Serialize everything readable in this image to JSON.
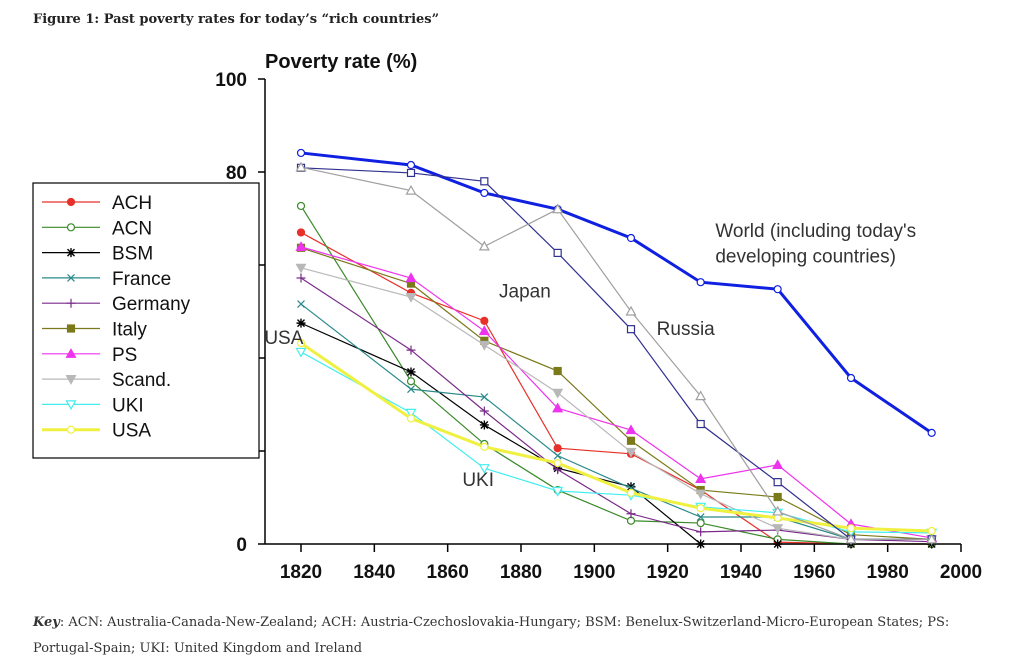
{
  "figure_title": "Figure 1: Past poverty rates for today’s “rich countries”",
  "key": {
    "label": "Key",
    "text": ": ACN: Australia-Canada-New-Zealand; ACH: Austria-Czechoslovakia-Hungary; BSM: Benelux-Switzerland-Micro-European States; PS: Portugal-Spain; UKI: United Kingdom and Ireland"
  },
  "chart_data": {
    "type": "line",
    "title": "",
    "ylabel": "Poverty rate (%)",
    "xlabel": "",
    "xlim": [
      1820,
      2000
    ],
    "ylim": [
      0,
      100
    ],
    "xticks": [
      1820,
      1840,
      1860,
      1880,
      1900,
      1920,
      1940,
      1960,
      1980,
      2000
    ],
    "yticks": [
      0,
      20,
      40,
      60,
      80,
      100
    ],
    "grid": false,
    "legend_placement": "left",
    "x": [
      1820,
      1850,
      1870,
      1890,
      1910,
      1929,
      1950,
      1970,
      1992
    ],
    "series": [
      {
        "name": "ACH",
        "color": "#e8302a",
        "marker": "circle-filled",
        "values": [
          67,
          54,
          48,
          20.6,
          19.4,
          11.6,
          0.4,
          0,
          0
        ],
        "legend": true
      },
      {
        "name": "ACN",
        "color": "#3a8a2a",
        "marker": "circle-open",
        "values": [
          72.7,
          35,
          21.5,
          11.6,
          5,
          4.5,
          1,
          0,
          0
        ],
        "legend": true
      },
      {
        "name": "BSM",
        "color": "#000000",
        "marker": "star",
        "values": [
          47.5,
          37,
          25.6,
          16.3,
          12.3,
          0,
          0,
          0,
          0
        ],
        "legend": true
      },
      {
        "name": "France",
        "color": "#2a8a8a",
        "marker": "x",
        "values": [
          51.6,
          33.3,
          31.6,
          19,
          12,
          5.8,
          5.8,
          1,
          1
        ],
        "legend": true
      },
      {
        "name": "Germany",
        "color": "#7a2a8a",
        "marker": "plus",
        "values": [
          57.2,
          41.7,
          28.6,
          16,
          6.5,
          2.6,
          3,
          1,
          0.5
        ],
        "legend": true
      },
      {
        "name": "Italy",
        "color": "#7a7a1a",
        "marker": "square-filled",
        "values": [
          63.7,
          56,
          43.7,
          37.2,
          22.2,
          11.6,
          10.1,
          2,
          1
        ],
        "legend": true
      },
      {
        "name": "PS",
        "color": "#ee33ee",
        "marker": "triangle-filled",
        "values": [
          63.9,
          57.2,
          45.8,
          29.2,
          24.5,
          14,
          17,
          4.3,
          1.3
        ],
        "legend": true
      },
      {
        "name": "Scand.",
        "color": "#b8b8b8",
        "marker": "triangle-down-filled",
        "values": [
          59.4,
          53.1,
          42.8,
          32.5,
          19.8,
          10.8,
          3.4,
          1,
          1
        ],
        "legend": true
      },
      {
        "name": "UKI",
        "color": "#44eeee",
        "marker": "triangle-down-open",
        "values": [
          41.3,
          28.2,
          16.3,
          11.4,
          10.5,
          8,
          6.7,
          2.6,
          2.4
        ],
        "legend": true
      },
      {
        "name": "USA",
        "color": "#f0f040",
        "marker": "circle-open",
        "values": [
          43.2,
          27,
          20.9,
          17.4,
          11,
          7.7,
          5.6,
          3.4,
          2.8
        ],
        "legend": true,
        "thick": true
      },
      {
        "name": "World (including today's developing countries)",
        "color": "#1020e0",
        "marker": "circle-open",
        "values": [
          84.1,
          81.5,
          75.5,
          72,
          65.8,
          56.3,
          54.8,
          35.7,
          23.9
        ],
        "legend": false,
        "thick": true
      },
      {
        "name": "Japan",
        "color": "#303090",
        "marker": "square-open",
        "values": [
          80.9,
          79.8,
          78,
          62.6,
          46.2,
          25.8,
          13.3,
          1,
          1
        ],
        "legend": false
      },
      {
        "name": "Russia",
        "color": "#a0a0a0",
        "marker": "triangle-open",
        "values": [
          81,
          76,
          64,
          72,
          50,
          31.8,
          7,
          1,
          1
        ],
        "legend": false
      }
    ],
    "annotations": [
      {
        "text": "World (including today's",
        "x": 1933,
        "y": 66
      },
      {
        "text": "developing countries)",
        "x": 1933,
        "y": 60.5
      },
      {
        "text": "Japan",
        "x": 1874,
        "y": 53
      },
      {
        "text": "Russia",
        "x": 1917,
        "y": 45
      },
      {
        "text": "USA",
        "x": 1810,
        "y": 43
      },
      {
        "text": "UKI",
        "x": 1864,
        "y": 12.5
      }
    ]
  }
}
